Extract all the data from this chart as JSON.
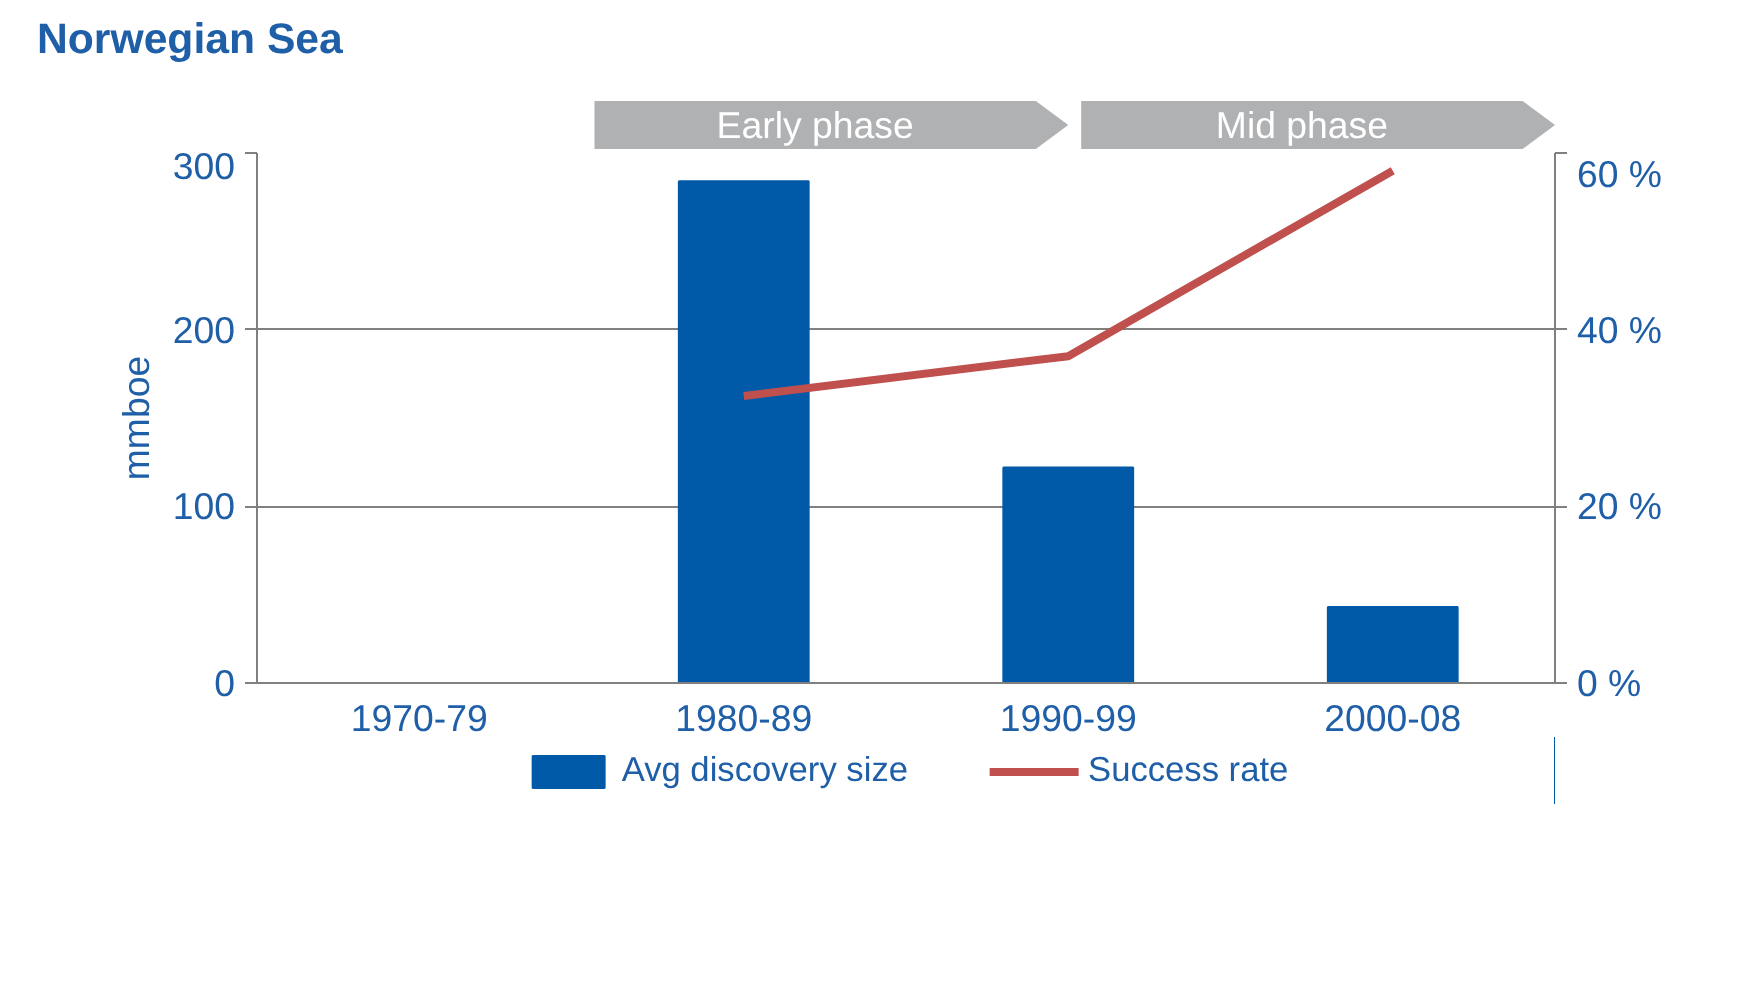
{
  "chart_data": {
    "type": "bar",
    "title": "Norwegian Sea",
    "ylabel": "mmboe",
    "categories": [
      "1970-79",
      "1980-89",
      "1990-99",
      "2000-08"
    ],
    "series": [
      {
        "name": "Avg discovery size",
        "color": "#005aa8",
        "values": [
          null,
          284,
          122,
          43
        ]
      },
      {
        "name": "Success rate",
        "type": "line",
        "axis": "y2",
        "color": "#c0504d",
        "values": [
          null,
          32.5,
          37,
          58
        ]
      }
    ],
    "ylim": [
      0,
      300
    ],
    "yticks": [
      0,
      100,
      200,
      300
    ],
    "y2lim": [
      0,
      60
    ],
    "y2ticks": [
      {
        "value": 0,
        "label": "0 %"
      },
      {
        "value": 20,
        "label": "20 %"
      },
      {
        "value": 40,
        "label": "40 %"
      },
      {
        "value": 60,
        "label": "60 %"
      }
    ],
    "grid": "y",
    "legend": "bottom",
    "marker": "none",
    "annotations": [
      "Early phase",
      "Mid phase"
    ]
  }
}
